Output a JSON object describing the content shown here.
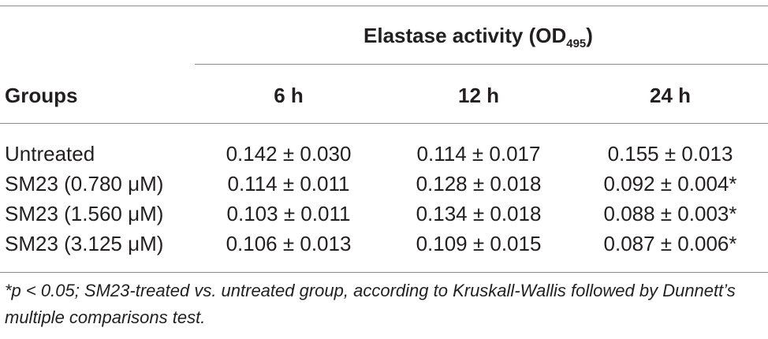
{
  "table": {
    "spanner": {
      "text": "Elastase activity (OD",
      "subscript": "495",
      "close": ")"
    },
    "group_header": "Groups",
    "time_headers": [
      "6 h",
      "12 h",
      "24 h"
    ],
    "rows": [
      {
        "group": "Untreated",
        "values": [
          "0.142 ± 0.030",
          "0.114 ± 0.017",
          "0.155 ± 0.013"
        ]
      },
      {
        "group": "SM23 (0.780 μM)",
        "values": [
          "0.114 ± 0.011",
          "0.128 ± 0.018",
          "0.092 ± 0.004*"
        ]
      },
      {
        "group": "SM23 (1.560 μM)",
        "values": [
          "0.103 ± 0.011",
          "0.134 ± 0.018",
          "0.088 ± 0.003*"
        ]
      },
      {
        "group": "SM23 (3.125 μM)",
        "values": [
          "0.106 ± 0.013",
          "0.109 ± 0.015",
          "0.087 ± 0.006*"
        ]
      }
    ],
    "footnote": "*p < 0.05; SM23-treated vs. untreated group, according to Kruskall-Wallis followed by Dunnett’s multiple comparisons test."
  }
}
